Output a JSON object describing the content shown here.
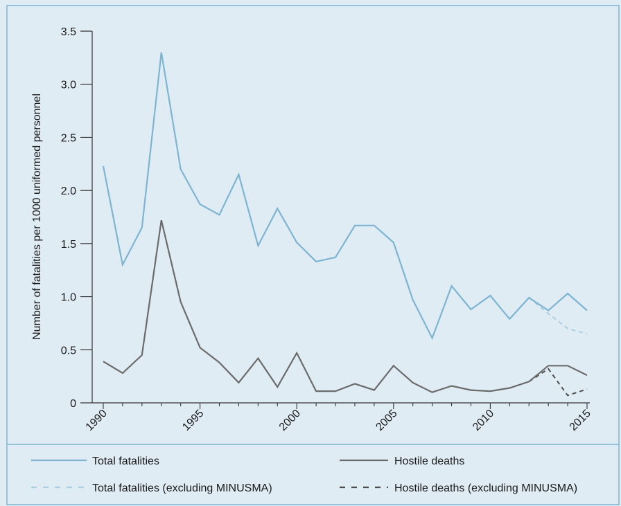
{
  "chart_data": {
    "type": "line",
    "title": "",
    "xlabel": "",
    "ylabel": "Number of fatalities per 1000 uniformed personnel",
    "xlim": [
      1990,
      2015
    ],
    "ylim": [
      0,
      3.5
    ],
    "yticks": [
      "0",
      "0.5",
      "1.0",
      "1.5",
      "2.0",
      "2.5",
      "3.0",
      "3.5"
    ],
    "xticks": [
      "1990",
      "1995",
      "2000",
      "2005",
      "2010",
      "2015"
    ],
    "grid": false,
    "legend_placement": "bottom",
    "series": [
      {
        "name": "Total fatalities",
        "color": "#7db4d2",
        "style": "solid",
        "x": [
          1990,
          1991,
          1992,
          1993,
          1994,
          1995,
          1996,
          1997,
          1998,
          1999,
          2000,
          2001,
          2002,
          2003,
          2004,
          2005,
          2006,
          2007,
          2008,
          2009,
          2010,
          2011,
          2012,
          2013,
          2014,
          2015
        ],
        "values": [
          2.23,
          1.3,
          1.65,
          3.3,
          2.2,
          1.87,
          1.77,
          2.15,
          1.48,
          1.83,
          1.51,
          1.33,
          1.37,
          1.67,
          1.67,
          1.51,
          0.97,
          0.61,
          1.1,
          0.88,
          1.01,
          0.79,
          0.99,
          0.87,
          1.03,
          0.87
        ]
      },
      {
        "name": "Hostile deaths",
        "color": "#6b6b6b",
        "style": "solid",
        "x": [
          1990,
          1991,
          1992,
          1993,
          1994,
          1995,
          1996,
          1997,
          1998,
          1999,
          2000,
          2001,
          2002,
          2003,
          2004,
          2005,
          2006,
          2007,
          2008,
          2009,
          2010,
          2011,
          2012,
          2013,
          2014,
          2015
        ],
        "values": [
          0.39,
          0.28,
          0.45,
          1.72,
          0.95,
          0.52,
          0.38,
          0.19,
          0.42,
          0.15,
          0.47,
          0.11,
          0.11,
          0.18,
          0.12,
          0.35,
          0.19,
          0.1,
          0.16,
          0.12,
          0.11,
          0.14,
          0.2,
          0.35,
          0.35,
          0.26
        ]
      },
      {
        "name": "Total fatalities (excluding MINUSMA)",
        "color": "#a9cfe3",
        "style": "dashed",
        "x": [
          2012,
          2013,
          2014,
          2015
        ],
        "values": [
          0.99,
          0.84,
          0.7,
          0.65
        ]
      },
      {
        "name": "Hostile deaths (excluding MINUSMA)",
        "color": "#4d4d4d",
        "style": "dashed",
        "x": [
          2012,
          2013,
          2014,
          2015
        ],
        "values": [
          0.2,
          0.32,
          0.07,
          0.13
        ]
      }
    ],
    "colors": {
      "background": "#e0ecf4",
      "border": "#7db4d2",
      "axis": "#333333"
    }
  }
}
